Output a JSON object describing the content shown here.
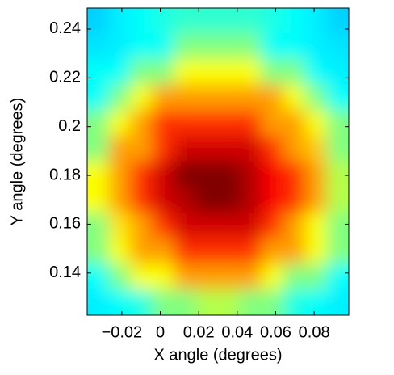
{
  "chart_data": {
    "type": "heatmap",
    "xlabel": "X angle (degrees)",
    "ylabel": "Y angle (degrees)",
    "xlim": [
      -0.038,
      0.098
    ],
    "ylim": [
      0.1227,
      0.2486
    ],
    "xticks": [
      {
        "value": -0.02,
        "label": "−0.02"
      },
      0,
      0.02,
      0.04,
      0.06,
      0.08
    ],
    "yticks": [
      0.14,
      0.16,
      0.18,
      0.2,
      0.22,
      0.24
    ],
    "colormap": "jet",
    "zlim": [
      0,
      1
    ],
    "z": [
      [
        0.33,
        0.36,
        0.38,
        0.4,
        0.42,
        0.42,
        0.42,
        0.42,
        0.4,
        0.38,
        0.36,
        0.33
      ],
      [
        0.35,
        0.36,
        0.38,
        0.38,
        0.5,
        0.5,
        0.5,
        0.5,
        0.38,
        0.38,
        0.36,
        0.35
      ],
      [
        0.38,
        0.38,
        0.5,
        0.5,
        0.62,
        0.62,
        0.62,
        0.62,
        0.5,
        0.5,
        0.38,
        0.36
      ],
      [
        0.38,
        0.5,
        0.62,
        0.72,
        0.72,
        0.72,
        0.72,
        0.72,
        0.72,
        0.62,
        0.5,
        0.38
      ],
      [
        0.5,
        0.62,
        0.72,
        0.83,
        0.83,
        0.83,
        0.83,
        0.83,
        0.72,
        0.72,
        0.62,
        0.5
      ],
      [
        0.5,
        0.72,
        0.72,
        0.83,
        0.92,
        0.92,
        0.92,
        0.92,
        0.83,
        0.72,
        0.68,
        0.5
      ],
      [
        0.62,
        0.72,
        0.83,
        0.92,
        1.0,
        1.0,
        1.0,
        0.95,
        0.88,
        0.83,
        0.72,
        0.55
      ],
      [
        0.62,
        0.72,
        0.83,
        0.92,
        0.95,
        1.0,
        1.0,
        0.95,
        0.88,
        0.83,
        0.72,
        0.55
      ],
      [
        0.5,
        0.65,
        0.72,
        0.83,
        0.92,
        0.92,
        0.92,
        0.92,
        0.83,
        0.72,
        0.62,
        0.5
      ],
      [
        0.5,
        0.62,
        0.72,
        0.72,
        0.83,
        0.83,
        0.83,
        0.83,
        0.72,
        0.72,
        0.62,
        0.5
      ],
      [
        0.38,
        0.5,
        0.62,
        0.62,
        0.72,
        0.72,
        0.72,
        0.72,
        0.62,
        0.5,
        0.5,
        0.38
      ],
      [
        0.36,
        0.38,
        0.4,
        0.5,
        0.5,
        0.55,
        0.55,
        0.5,
        0.5,
        0.4,
        0.38,
        0.36
      ]
    ]
  }
}
